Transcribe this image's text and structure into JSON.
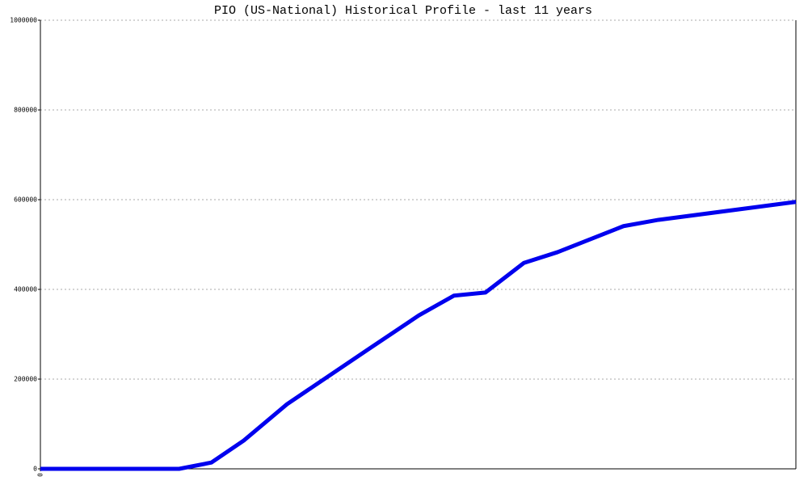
{
  "chart_data": {
    "type": "line",
    "title": "PIO (US-National) Historical Profile - last 11 years",
    "x": [
      0,
      2.02,
      2.49,
      2.96,
      3.59,
      4.76,
      5.51,
      6.02,
      6.48,
      7.04,
      7.53,
      8.49,
      9.0,
      11
    ],
    "series": [
      {
        "name": "PIO",
        "color": "#0000ee",
        "values": [
          0,
          0,
          14000,
          63000,
          144000,
          265000,
          342000,
          386000,
          393000,
          459000,
          483000,
          541000,
          555000,
          595000
        ]
      }
    ],
    "xlim": [
      0,
      11
    ],
    "xticks": [
      0
    ],
    "ylim": [
      0,
      1000000
    ],
    "yticks": [
      0,
      200000,
      400000,
      600000,
      800000,
      1000000
    ],
    "grid": true
  }
}
